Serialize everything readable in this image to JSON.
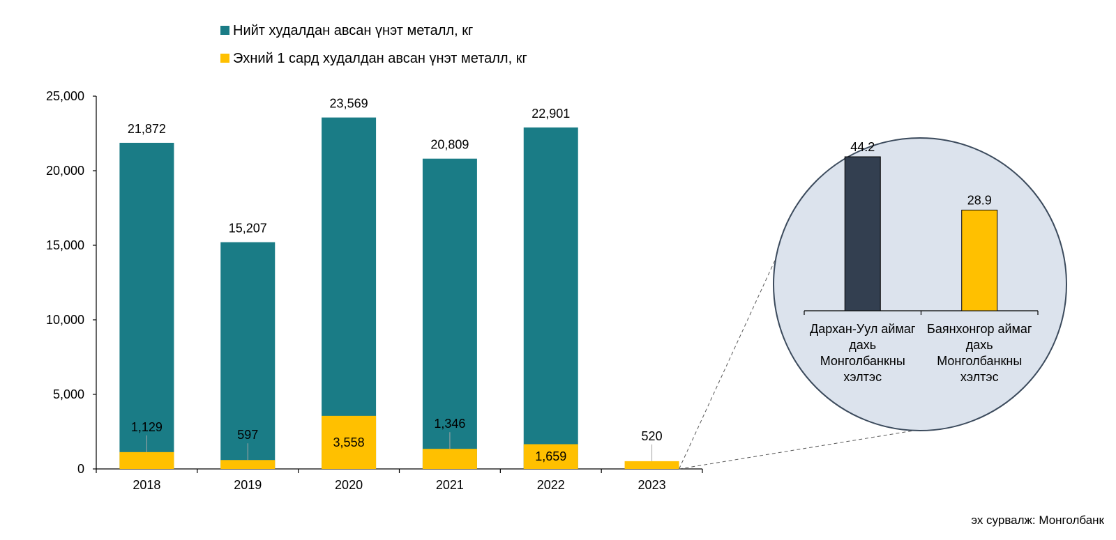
{
  "chart_data": [
    {
      "type": "bar",
      "stacked": true,
      "categories": [
        "2018",
        "2019",
        "2020",
        "2021",
        "2022",
        "2023"
      ],
      "series": [
        {
          "name": "Нийт худалдан авсан үнэт металл, кг",
          "color": "#1a7c86",
          "values": [
            21872,
            15207,
            23569,
            20809,
            22901,
            null
          ],
          "labels": [
            "21,872",
            "15,207",
            "23,569",
            "20,809",
            "22,901",
            ""
          ]
        },
        {
          "name": "Эхний 1 сард худалдан авсан үнэт металл, кг",
          "color": "#ffc000",
          "values": [
            1129,
            597,
            3558,
            1346,
            1659,
            520
          ],
          "labels": [
            "1,129",
            "597",
            "3,558",
            "1,346",
            "1,659",
            "520"
          ]
        }
      ],
      "ylim": [
        0,
        25000
      ],
      "yticks": [
        0,
        5000,
        10000,
        15000,
        20000,
        25000
      ],
      "ytick_labels": [
        "0",
        "5,000",
        "10,000",
        "15,000",
        "20,000",
        "25,000"
      ],
      "grid": false,
      "legend_position": "top"
    },
    {
      "type": "bar",
      "inset": true,
      "categories": [
        [
          "Дархан-Уул аймаг",
          "дахь",
          "Монголбанкны",
          "хэлтэс"
        ],
        [
          "Баянхонгор аймаг",
          "дахь",
          "Монголбанкны",
          "хэлтэс"
        ]
      ],
      "values": [
        44.2,
        28.9
      ],
      "labels": [
        "44.2",
        "28.9"
      ],
      "colors": [
        "#333f50",
        "#ffc000"
      ],
      "ylim": [
        0,
        50
      ]
    }
  ],
  "source_note": "эх сурвалж: Монголбанк"
}
